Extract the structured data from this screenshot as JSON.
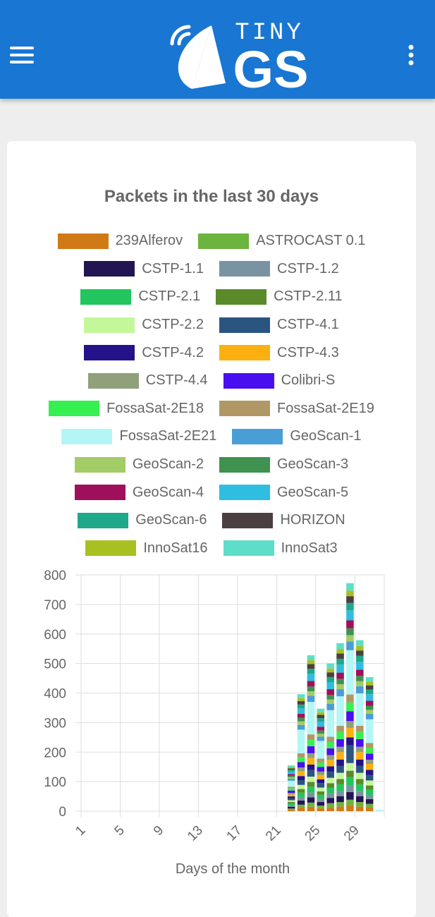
{
  "header": {
    "logo_top": "TINY",
    "logo_bottom": "GS"
  },
  "chart_data": {
    "type": "bar",
    "stacked": true,
    "title": "Packets in the last 30 days",
    "x_label": "Days of the month",
    "categories": [
      "1",
      null,
      null,
      null,
      "5",
      null,
      null,
      null,
      "9",
      null,
      null,
      null,
      "13",
      null,
      null,
      null,
      "17",
      null,
      null,
      null,
      "21",
      null,
      null,
      null,
      "25",
      null,
      null,
      null,
      "29",
      null,
      null
    ],
    "ylim": [
      0,
      800
    ],
    "yticks": [
      0,
      100,
      200,
      300,
      400,
      500,
      600,
      700,
      800
    ],
    "grid": true,
    "series": [
      {
        "name": "239Alferov",
        "color": "#d07a17",
        "values": [
          0,
          0,
          0,
          0,
          0,
          0,
          0,
          0,
          0,
          0,
          0,
          0,
          0,
          0,
          0,
          0,
          0,
          0,
          0,
          0,
          0,
          5,
          12,
          15,
          10,
          14,
          16,
          20,
          16,
          13,
          0
        ]
      },
      {
        "name": "ASTROCAST 0.1",
        "color": "#6db33f",
        "values": [
          0,
          0,
          0,
          0,
          0,
          0,
          0,
          0,
          0,
          0,
          0,
          0,
          0,
          0,
          0,
          0,
          0,
          0,
          0,
          0,
          0,
          4,
          10,
          14,
          9,
          13,
          15,
          19,
          15,
          12,
          0
        ]
      },
      {
        "name": "CSTP-1.1",
        "color": "#231552",
        "values": [
          0,
          0,
          0,
          0,
          0,
          0,
          0,
          0,
          0,
          0,
          0,
          0,
          0,
          0,
          0,
          0,
          0,
          0,
          0,
          0,
          0,
          6,
          14,
          18,
          12,
          18,
          20,
          26,
          20,
          16,
          0
        ]
      },
      {
        "name": "CSTP-1.2",
        "color": "#7a93a3",
        "values": [
          0,
          0,
          0,
          0,
          0,
          0,
          0,
          0,
          0,
          0,
          0,
          0,
          0,
          0,
          0,
          0,
          0,
          0,
          0,
          0,
          0,
          5,
          12,
          16,
          11,
          15,
          18,
          22,
          18,
          14,
          0
        ]
      },
      {
        "name": "CSTP-2.1",
        "color": "#22c55e",
        "values": [
          0,
          0,
          0,
          0,
          0,
          0,
          0,
          0,
          0,
          0,
          0,
          0,
          0,
          0,
          0,
          0,
          0,
          0,
          0,
          0,
          0,
          6,
          15,
          20,
          14,
          19,
          22,
          28,
          22,
          18,
          0
        ]
      },
      {
        "name": "CSTP-2.11",
        "color": "#5a8a2a",
        "values": [
          0,
          0,
          0,
          0,
          0,
          0,
          0,
          0,
          0,
          0,
          0,
          0,
          0,
          0,
          0,
          0,
          0,
          0,
          0,
          0,
          0,
          5,
          12,
          16,
          11,
          16,
          18,
          22,
          18,
          14,
          0
        ]
      },
      {
        "name": "CSTP-2.2",
        "color": "#c4f79a",
        "values": [
          0,
          0,
          0,
          0,
          0,
          0,
          0,
          0,
          0,
          0,
          0,
          0,
          0,
          0,
          0,
          0,
          0,
          0,
          0,
          0,
          0,
          6,
          14,
          18,
          13,
          18,
          21,
          26,
          21,
          17,
          0
        ]
      },
      {
        "name": "CSTP-4.1",
        "color": "#2a5580",
        "values": [
          0,
          0,
          0,
          0,
          0,
          0,
          0,
          0,
          0,
          0,
          0,
          0,
          0,
          0,
          0,
          0,
          0,
          0,
          0,
          0,
          0,
          7,
          16,
          22,
          15,
          21,
          24,
          60,
          24,
          19,
          0
        ]
      },
      {
        "name": "CSTP-4.2",
        "color": "#23128a",
        "values": [
          0,
          0,
          0,
          0,
          0,
          0,
          0,
          0,
          0,
          0,
          0,
          0,
          0,
          0,
          0,
          0,
          0,
          0,
          0,
          0,
          0,
          6,
          14,
          19,
          13,
          18,
          21,
          27,
          21,
          17,
          0
        ]
      },
      {
        "name": "CSTP-4.3",
        "color": "#fbb010",
        "values": [
          0,
          0,
          0,
          0,
          0,
          0,
          0,
          0,
          0,
          0,
          0,
          0,
          0,
          0,
          0,
          0,
          0,
          0,
          0,
          0,
          0,
          7,
          17,
          22,
          15,
          22,
          25,
          32,
          25,
          20,
          0
        ]
      },
      {
        "name": "CSTP-4.4",
        "color": "#8fa07a",
        "values": [
          0,
          0,
          0,
          0,
          0,
          0,
          0,
          0,
          0,
          0,
          0,
          0,
          0,
          0,
          0,
          0,
          0,
          0,
          0,
          0,
          0,
          5,
          12,
          16,
          11,
          16,
          18,
          23,
          18,
          14,
          0
        ]
      },
      {
        "name": "Colibri-S",
        "color": "#4a0ff0",
        "values": [
          0,
          0,
          0,
          0,
          0,
          0,
          0,
          0,
          0,
          0,
          0,
          0,
          0,
          0,
          0,
          0,
          0,
          0,
          0,
          0,
          0,
          8,
          18,
          24,
          16,
          23,
          26,
          33,
          26,
          21,
          0
        ]
      },
      {
        "name": "FossaSat-2E18",
        "color": "#35f050",
        "values": [
          0,
          0,
          0,
          0,
          0,
          0,
          0,
          0,
          0,
          0,
          0,
          0,
          0,
          0,
          0,
          0,
          0,
          0,
          0,
          0,
          0,
          7,
          16,
          21,
          15,
          21,
          24,
          30,
          24,
          19,
          0
        ]
      },
      {
        "name": "FossaSat-2E19",
        "color": "#b09866",
        "values": [
          0,
          0,
          0,
          0,
          0,
          0,
          0,
          0,
          0,
          0,
          0,
          0,
          0,
          0,
          0,
          0,
          0,
          0,
          0,
          0,
          0,
          6,
          14,
          19,
          13,
          18,
          21,
          27,
          21,
          17,
          0
        ]
      },
      {
        "name": "FossaSat-2E21",
        "color": "#b4f5f5",
        "values": [
          0,
          0,
          0,
          0,
          0,
          0,
          0,
          0,
          0,
          0,
          0,
          0,
          0,
          0,
          0,
          0,
          0,
          0,
          0,
          0,
          0,
          20,
          80,
          110,
          60,
          90,
          100,
          150,
          110,
          80,
          5
        ]
      },
      {
        "name": "GeoScan-1",
        "color": "#4a9ed6",
        "values": [
          0,
          0,
          0,
          0,
          0,
          0,
          0,
          0,
          0,
          0,
          0,
          0,
          0,
          0,
          0,
          0,
          0,
          0,
          0,
          0,
          0,
          7,
          16,
          21,
          14,
          21,
          24,
          30,
          24,
          19,
          0
        ]
      },
      {
        "name": "GeoScan-2",
        "color": "#a2cc66",
        "values": [
          0,
          0,
          0,
          0,
          0,
          0,
          0,
          0,
          0,
          0,
          0,
          0,
          0,
          0,
          0,
          0,
          0,
          0,
          0,
          0,
          0,
          5,
          12,
          15,
          10,
          15,
          17,
          21,
          17,
          13,
          0
        ]
      },
      {
        "name": "GeoScan-3",
        "color": "#3f9250",
        "values": [
          0,
          0,
          0,
          0,
          0,
          0,
          0,
          0,
          0,
          0,
          0,
          0,
          0,
          0,
          0,
          0,
          0,
          0,
          0,
          0,
          0,
          5,
          12,
          16,
          11,
          16,
          18,
          23,
          18,
          14,
          0
        ]
      },
      {
        "name": "GeoScan-4",
        "color": "#a0105a",
        "values": [
          0,
          0,
          0,
          0,
          0,
          0,
          0,
          0,
          0,
          0,
          0,
          0,
          0,
          0,
          0,
          0,
          0,
          0,
          0,
          0,
          0,
          6,
          14,
          19,
          13,
          19,
          21,
          27,
          21,
          17,
          0
        ]
      },
      {
        "name": "GeoScan-5",
        "color": "#2fbde0",
        "values": [
          0,
          0,
          0,
          0,
          0,
          0,
          0,
          0,
          0,
          0,
          0,
          0,
          0,
          0,
          0,
          0,
          0,
          0,
          0,
          0,
          0,
          8,
          18,
          24,
          17,
          24,
          27,
          34,
          27,
          22,
          0
        ]
      },
      {
        "name": "GeoScan-6",
        "color": "#1fa88a",
        "values": [
          0,
          0,
          0,
          0,
          0,
          0,
          0,
          0,
          0,
          0,
          0,
          0,
          0,
          0,
          0,
          0,
          0,
          0,
          0,
          0,
          0,
          6,
          13,
          17,
          12,
          17,
          20,
          25,
          20,
          16,
          0
        ]
      },
      {
        "name": "HORIZON",
        "color": "#4a4040",
        "values": [
          0,
          0,
          0,
          0,
          0,
          0,
          0,
          0,
          0,
          0,
          0,
          0,
          0,
          0,
          0,
          0,
          0,
          0,
          0,
          0,
          0,
          5,
          12,
          16,
          11,
          16,
          18,
          23,
          18,
          14,
          0
        ]
      },
      {
        "name": "InnoSat16",
        "color": "#a8c020",
        "values": [
          0,
          0,
          0,
          0,
          0,
          0,
          0,
          0,
          0,
          0,
          0,
          0,
          0,
          0,
          0,
          0,
          0,
          0,
          0,
          0,
          0,
          5,
          10,
          13,
          9,
          13,
          15,
          19,
          15,
          12,
          0
        ]
      },
      {
        "name": "InnoSat3",
        "color": "#5edec8",
        "values": [
          0,
          0,
          0,
          0,
          0,
          0,
          0,
          0,
          0,
          0,
          0,
          0,
          0,
          0,
          0,
          0,
          0,
          0,
          0,
          0,
          0,
          5,
          13,
          17,
          12,
          17,
          20,
          25,
          20,
          16,
          0
        ]
      }
    ]
  }
}
